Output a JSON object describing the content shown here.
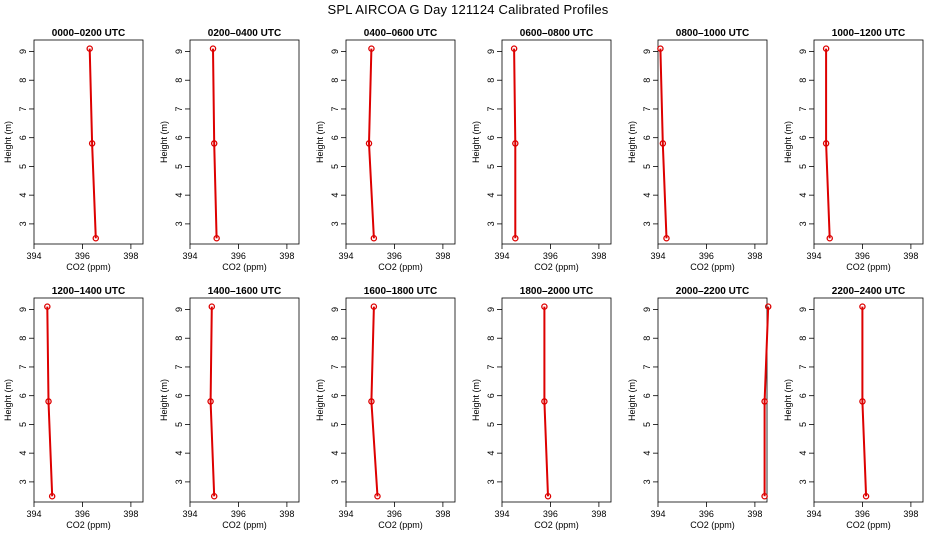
{
  "title": "SPL AIRCOA G  Day 121124  Calibrated Profiles",
  "line_color": "#dd0000",
  "chart_data": [
    {
      "type": "line",
      "title": "0000–0200 UTC",
      "xlabel": "CO2 (ppm)",
      "ylabel": "Height (m)",
      "xlim": [
        394,
        398.5
      ],
      "ylim": [
        2.3,
        9.4
      ],
      "x_ticks": [
        "394",
        "396",
        "398"
      ],
      "y_ticks": [
        "3",
        "4",
        "5",
        "6",
        "7",
        "8",
        "9"
      ],
      "series": [
        {
          "x": [
            396.55,
            396.4,
            396.3
          ],
          "y": [
            2.5,
            5.8,
            9.1
          ]
        }
      ]
    },
    {
      "type": "line",
      "title": "0200–0400 UTC",
      "xlabel": "CO2 (ppm)",
      "ylabel": "Height (m)",
      "xlim": [
        394,
        398.5
      ],
      "ylim": [
        2.3,
        9.4
      ],
      "x_ticks": [
        "394",
        "396",
        "398"
      ],
      "y_ticks": [
        "3",
        "4",
        "5",
        "6",
        "7",
        "8",
        "9"
      ],
      "series": [
        {
          "x": [
            395.1,
            395.0,
            394.95
          ],
          "y": [
            2.5,
            5.8,
            9.1
          ]
        }
      ]
    },
    {
      "type": "line",
      "title": "0400–0600 UTC",
      "xlabel": "CO2 (ppm)",
      "ylabel": "Height (m)",
      "xlim": [
        394,
        398.5
      ],
      "ylim": [
        2.3,
        9.4
      ],
      "x_ticks": [
        "394",
        "396",
        "398"
      ],
      "y_ticks": [
        "3",
        "4",
        "5",
        "6",
        "7",
        "8",
        "9"
      ],
      "series": [
        {
          "x": [
            395.15,
            394.95,
            395.05
          ],
          "y": [
            2.5,
            5.8,
            9.1
          ]
        }
      ]
    },
    {
      "type": "line",
      "title": "0600–0800 UTC",
      "xlabel": "CO2 (ppm)",
      "ylabel": "Height (m)",
      "xlim": [
        394,
        398.5
      ],
      "ylim": [
        2.3,
        9.4
      ],
      "x_ticks": [
        "394",
        "396",
        "398"
      ],
      "y_ticks": [
        "3",
        "4",
        "5",
        "6",
        "7",
        "8",
        "9"
      ],
      "series": [
        {
          "x": [
            394.55,
            394.55,
            394.5
          ],
          "y": [
            2.5,
            5.8,
            9.1
          ]
        }
      ]
    },
    {
      "type": "line",
      "title": "0800–1000 UTC",
      "xlabel": "CO2 (ppm)",
      "ylabel": "Height (m)",
      "xlim": [
        394,
        398.5
      ],
      "ylim": [
        2.3,
        9.4
      ],
      "x_ticks": [
        "394",
        "396",
        "398"
      ],
      "y_ticks": [
        "3",
        "4",
        "5",
        "6",
        "7",
        "8",
        "9"
      ],
      "series": [
        {
          "x": [
            394.35,
            394.2,
            394.1
          ],
          "y": [
            2.5,
            5.8,
            9.1
          ]
        }
      ]
    },
    {
      "type": "line",
      "title": "1000–1200 UTC",
      "xlabel": "CO2 (ppm)",
      "ylabel": "Height (m)",
      "xlim": [
        394,
        398.5
      ],
      "ylim": [
        2.3,
        9.4
      ],
      "x_ticks": [
        "394",
        "396",
        "398"
      ],
      "y_ticks": [
        "3",
        "4",
        "5",
        "6",
        "7",
        "8",
        "9"
      ],
      "series": [
        {
          "x": [
            394.65,
            394.5,
            394.5
          ],
          "y": [
            2.5,
            5.8,
            9.1
          ]
        }
      ]
    },
    {
      "type": "line",
      "title": "1200–1400 UTC",
      "xlabel": "CO2 (ppm)",
      "ylabel": "Height (m)",
      "xlim": [
        394,
        398.5
      ],
      "ylim": [
        2.3,
        9.4
      ],
      "x_ticks": [
        "394",
        "396",
        "398"
      ],
      "y_ticks": [
        "3",
        "4",
        "5",
        "6",
        "7",
        "8",
        "9"
      ],
      "series": [
        {
          "x": [
            394.75,
            394.6,
            394.55
          ],
          "y": [
            2.5,
            5.8,
            9.1
          ]
        }
      ]
    },
    {
      "type": "line",
      "title": "1400–1600 UTC",
      "xlabel": "CO2 (ppm)",
      "ylabel": "Height (m)",
      "xlim": [
        394,
        398.5
      ],
      "ylim": [
        2.3,
        9.4
      ],
      "x_ticks": [
        "394",
        "396",
        "398"
      ],
      "y_ticks": [
        "3",
        "4",
        "5",
        "6",
        "7",
        "8",
        "9"
      ],
      "series": [
        {
          "x": [
            395.0,
            394.85,
            394.9
          ],
          "y": [
            2.5,
            5.8,
            9.1
          ]
        }
      ]
    },
    {
      "type": "line",
      "title": "1600–1800 UTC",
      "xlabel": "CO2 (ppm)",
      "ylabel": "Height (m)",
      "xlim": [
        394,
        398.5
      ],
      "ylim": [
        2.3,
        9.4
      ],
      "x_ticks": [
        "394",
        "396",
        "398"
      ],
      "y_ticks": [
        "3",
        "4",
        "5",
        "6",
        "7",
        "8",
        "9"
      ],
      "series": [
        {
          "x": [
            395.3,
            395.05,
            395.15
          ],
          "y": [
            2.5,
            5.8,
            9.1
          ]
        }
      ]
    },
    {
      "type": "line",
      "title": "1800–2000 UTC",
      "xlabel": "CO2 (ppm)",
      "ylabel": "Height (m)",
      "xlim": [
        394,
        398.5
      ],
      "ylim": [
        2.3,
        9.4
      ],
      "x_ticks": [
        "394",
        "396",
        "398"
      ],
      "y_ticks": [
        "3",
        "4",
        "5",
        "6",
        "7",
        "8",
        "9"
      ],
      "series": [
        {
          "x": [
            395.9,
            395.75,
            395.75
          ],
          "y": [
            2.5,
            5.8,
            9.1
          ]
        }
      ]
    },
    {
      "type": "line",
      "title": "2000–2200 UTC",
      "xlabel": "CO2 (ppm)",
      "ylabel": "Height (m)",
      "xlim": [
        394,
        398.5
      ],
      "ylim": [
        2.3,
        9.4
      ],
      "x_ticks": [
        "394",
        "396",
        "398"
      ],
      "y_ticks": [
        "3",
        "4",
        "5",
        "6",
        "7",
        "8",
        "9"
      ],
      "series": [
        {
          "x": [
            398.4,
            398.4,
            398.55
          ],
          "y": [
            2.5,
            5.8,
            9.1
          ]
        }
      ]
    },
    {
      "type": "line",
      "title": "2200–2400 UTC",
      "xlabel": "CO2 (ppm)",
      "ylabel": "Height (m)",
      "xlim": [
        394,
        398.5
      ],
      "ylim": [
        2.3,
        9.4
      ],
      "x_ticks": [
        "394",
        "396",
        "398"
      ],
      "y_ticks": [
        "3",
        "4",
        "5",
        "6",
        "7",
        "8",
        "9"
      ],
      "series": [
        {
          "x": [
            396.15,
            396.0,
            396.0
          ],
          "y": [
            2.5,
            5.8,
            9.1
          ]
        }
      ]
    }
  ]
}
